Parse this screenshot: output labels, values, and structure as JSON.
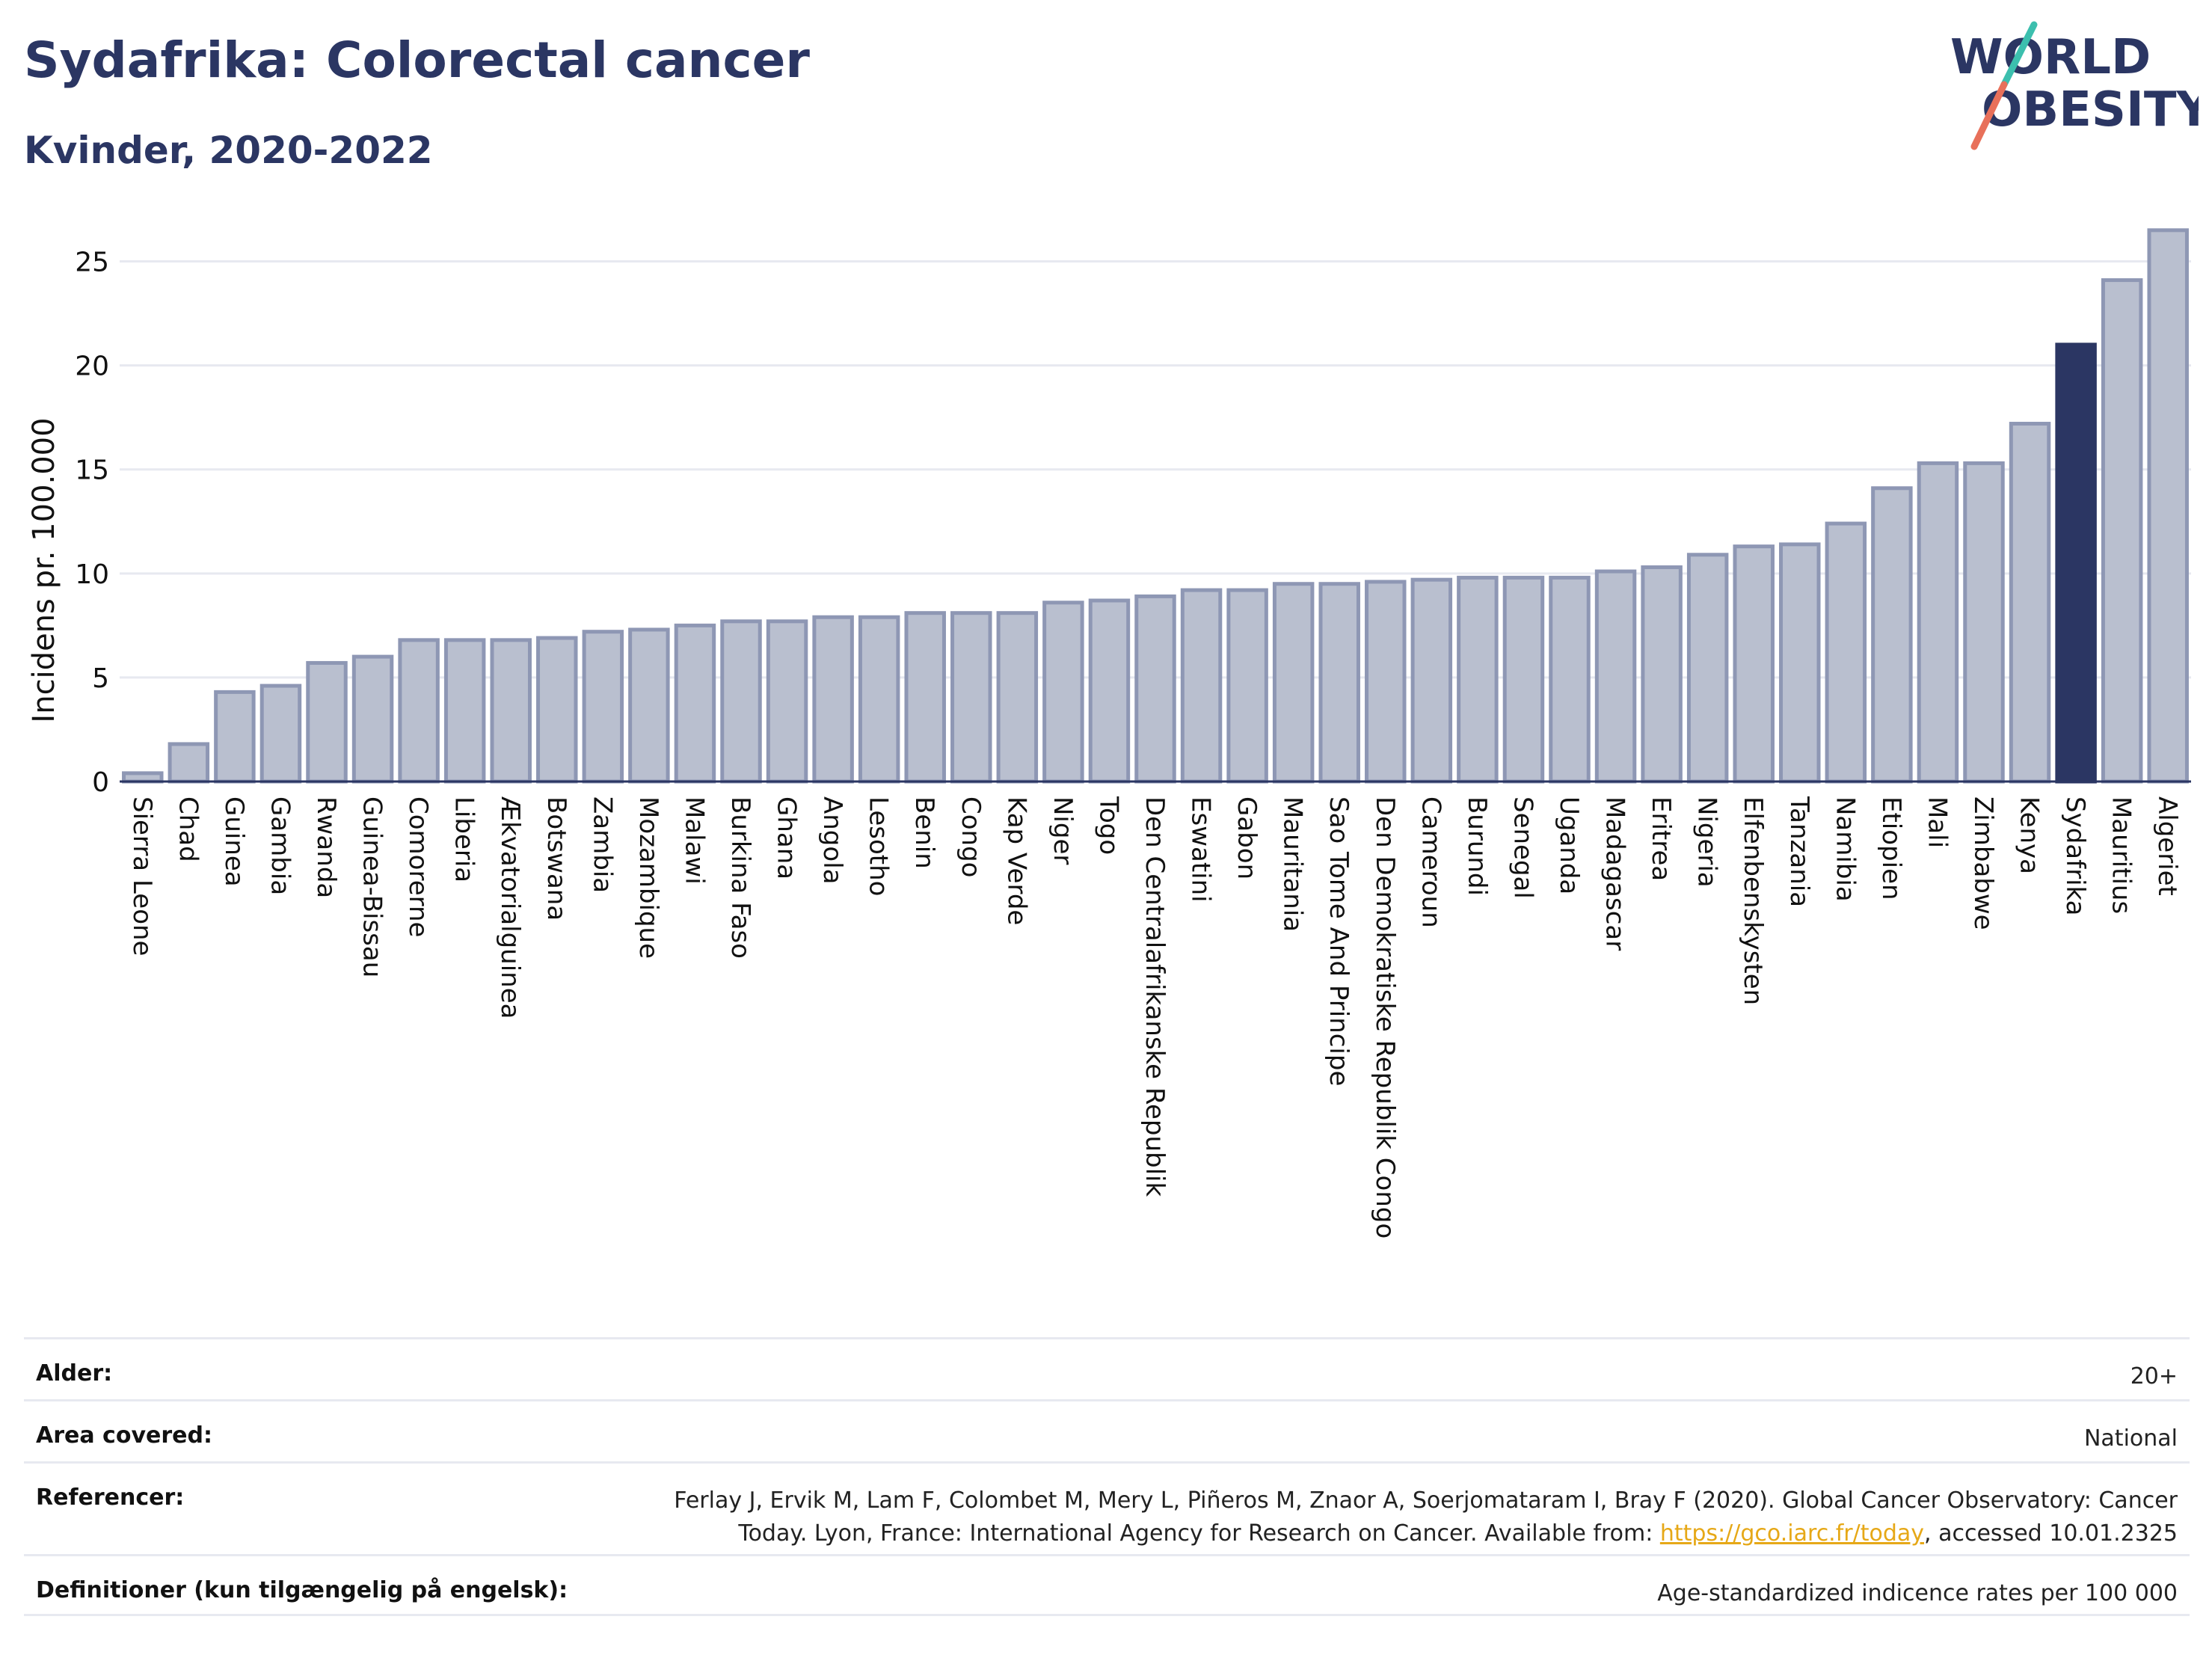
{
  "title": "Sydafrika: Colorectal cancer",
  "subtitle": "Kvinder, 2020-2022",
  "logo": {
    "line1": "WORLD",
    "line2": "OBESITY"
  },
  "colors": {
    "bar_default": "#b9bfcf",
    "bar_default_border": "#8e97b4",
    "bar_highlight": "#2b3663",
    "text_title": "#2b3663",
    "logo_slash_teal": "#3cbfae",
    "logo_slash_coral": "#e8705a",
    "link": "#e6a817"
  },
  "chart_data": {
    "type": "bar",
    "ylabel": "Incidens pr. 100.000",
    "xlabel": "",
    "ylim": [
      0,
      27.5
    ],
    "yticks": [
      0,
      5,
      10,
      15,
      20,
      25
    ],
    "grid": true,
    "highlight": "Sydafrika",
    "categories": [
      "Sierra Leone",
      "Chad",
      "Guinea",
      "Gambia",
      "Rwanda",
      "Guinea-Bissau",
      "Comorerne",
      "Liberia",
      "Ækvatorialguinea",
      "Botswana",
      "Zambia",
      "Mozambique",
      "Malawi",
      "Burkina Faso",
      "Ghana",
      "Angola",
      "Lesotho",
      "Benin",
      "Congo",
      "Kap Verde",
      "Niger",
      "Togo",
      "Den Centralafrikanske Republik",
      "Eswatini",
      "Gabon",
      "Mauritania",
      "Sao Tome And Principe",
      "Den Demokratiske Republik Congo",
      "Cameroun",
      "Burundi",
      "Senegal",
      "Uganda",
      "Madagascar",
      "Eritrea",
      "Nigeria",
      "Elfenbenskysten",
      "Tanzania",
      "Namibia",
      "Etiopien",
      "Mali",
      "Zimbabwe",
      "Kenya",
      "Sydafrika",
      "Mauritius",
      "Algeriet"
    ],
    "values": [
      0.4,
      1.8,
      4.3,
      4.6,
      5.7,
      6.0,
      6.8,
      6.8,
      6.8,
      6.9,
      7.2,
      7.3,
      7.5,
      7.7,
      7.7,
      7.9,
      7.9,
      8.1,
      8.1,
      8.1,
      8.6,
      8.7,
      8.9,
      9.2,
      9.2,
      9.5,
      9.5,
      9.6,
      9.7,
      9.8,
      9.8,
      9.8,
      10.1,
      10.3,
      10.9,
      11.3,
      11.4,
      12.4,
      14.1,
      15.3,
      15.3,
      17.2,
      21.0,
      24.1,
      26.5
    ]
  },
  "meta": {
    "age_label": "Alder:",
    "age_value": "20+",
    "area_label": "Area covered:",
    "area_value": "National",
    "ref_label": "Referencer:",
    "ref_line1": "Ferlay J, Ervik M, Lam F, Colombet M, Mery L, Piñeros M, Znaor A, Soerjomataram I, Bray F (2020). Global Cancer Observatory: Cancer",
    "ref_line2_prefix": "Today. Lyon, France: International Agency for Research on Cancer. Available from: ",
    "ref_link": "https://gco.iarc.fr/today",
    "ref_line2_suffix": ", accessed 10.01.2325",
    "def_label": "Definitioner (kun tilgængelig på engelsk):",
    "def_value": "Age-standardized indicence rates per 100 000"
  }
}
